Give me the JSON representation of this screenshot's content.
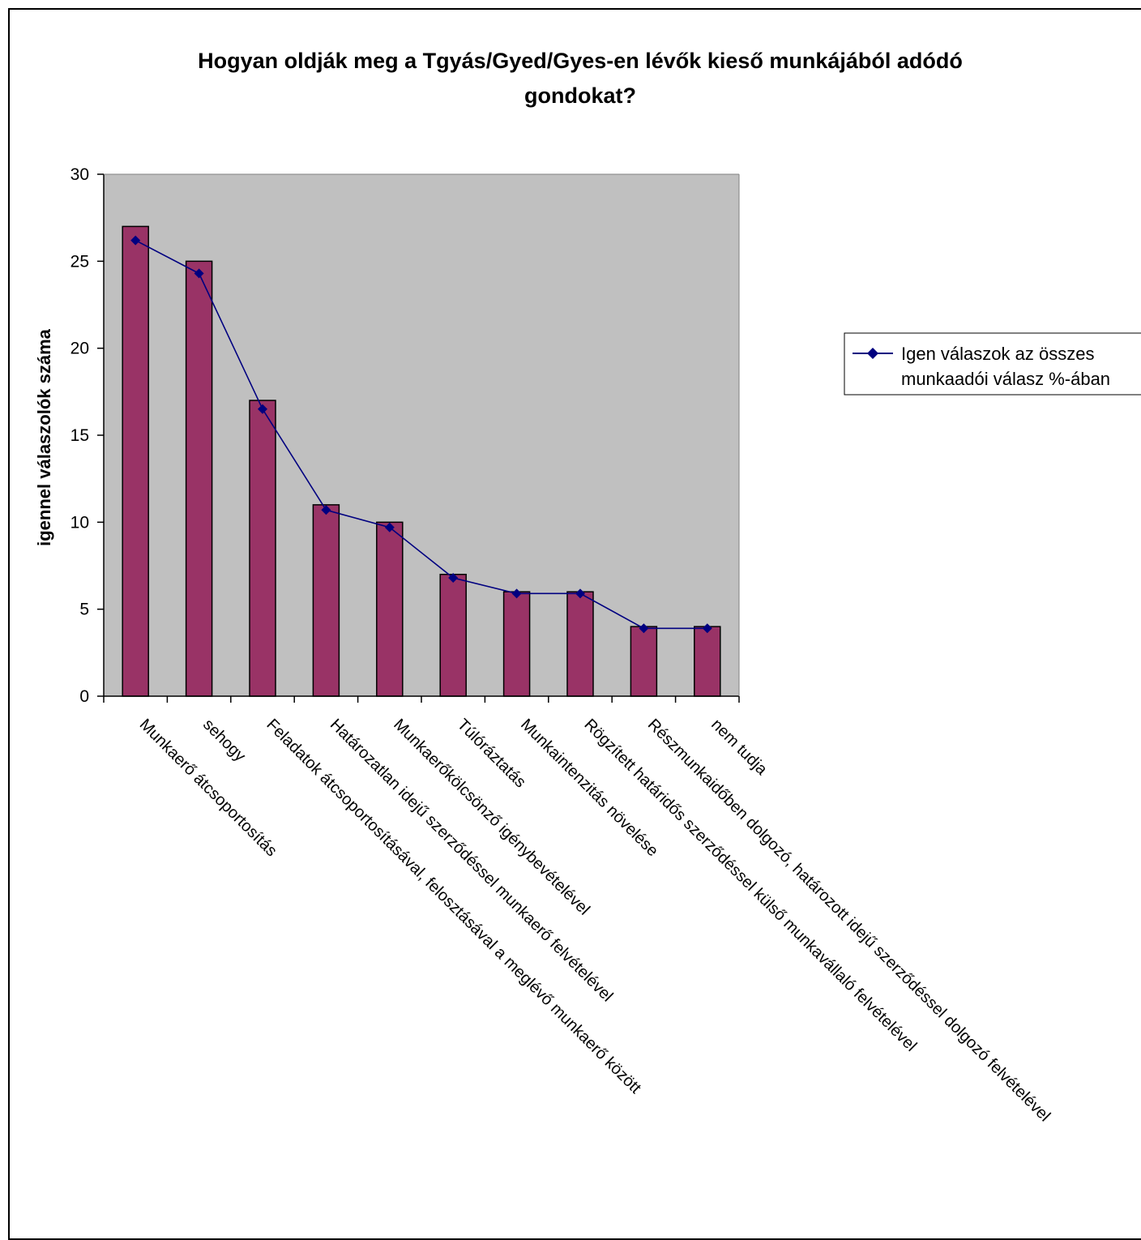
{
  "chart_data": {
    "type": "bar",
    "title_lines": [
      "Hogyan oldják meg a Tgyás/Gyed/Gyes-en lévők kieső munkájából adódó",
      "gondokat?"
    ],
    "ylabel": "igennel válaszolók száma",
    "xlabel": "",
    "ylim": [
      0,
      30
    ],
    "yticks": [
      0,
      5,
      10,
      15,
      20,
      25,
      30
    ],
    "grid": false,
    "legend_position": "right",
    "categories": [
      "Munkaerő átcsoportosítás",
      "sehogy",
      "Feladatok átcsoportosításával, felosztásával a meglévő munkaerő között",
      "Határozatlan idejű szerződéssel munkaerő felvételével",
      "Munkaerőkölcsönző igénybevételével",
      "Túlóráztatás",
      "Munkaintenzitás növelése",
      "Rögzített határidős szerződéssel külső munkavállaló felvételével",
      "Részmunkaidőben dolgozó, határozott idejű szerződéssel dolgozó felvételével",
      "nem tudja"
    ],
    "series": [
      {
        "kind": "bar",
        "values": [
          27,
          25,
          17,
          11,
          10,
          7,
          6,
          6,
          4,
          4
        ],
        "color": "#993366"
      },
      {
        "kind": "line",
        "name_lines": [
          "Igen válaszok az összes",
          "munkaadói válasz %-ában"
        ],
        "values": [
          26.2,
          24.3,
          16.5,
          10.7,
          9.7,
          6.8,
          5.9,
          5.9,
          3.9,
          3.9
        ],
        "color": "#000080"
      }
    ],
    "plot_background": "#c0c0c0"
  }
}
